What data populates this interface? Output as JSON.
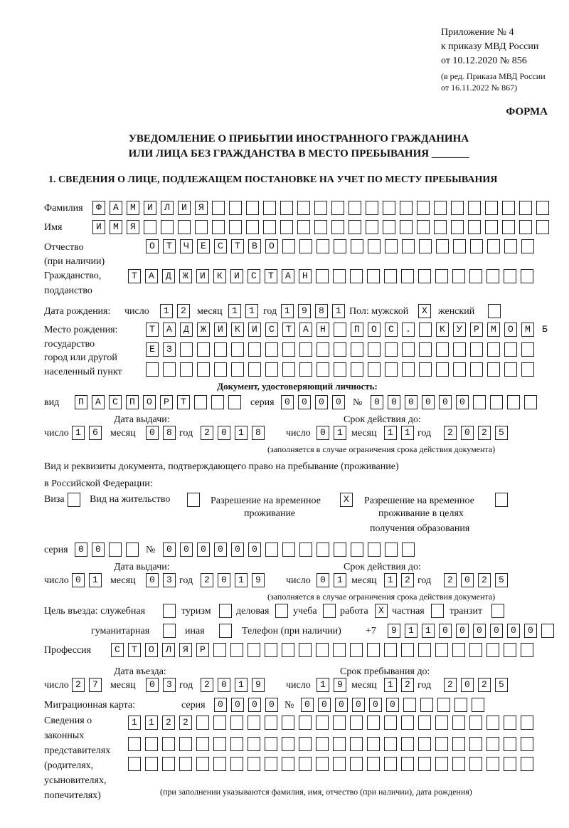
{
  "header": {
    "appendix": [
      "Приложение № 4",
      "к приказу МВД России",
      "от 10.12.2020 № 856"
    ],
    "revision": [
      "(в ред. Приказа МВД России",
      "от 16.11.2022 № 867)"
    ],
    "form_label": "ФОРМА",
    "title": [
      "УВЕДОМЛЕНИЕ О ПРИБЫТИИ ИНОСТРАННОГО ГРАЖДАНИНА",
      "ИЛИ ЛИЦА БЕЗ ГРАЖДАНСТВА В МЕСТО ПРЕБЫВАНИЯ _______"
    ],
    "section": "1. СВЕДЕНИЯ О ЛИЦЕ, ПОДЛЕЖАЩЕМ ПОСТАНОВКЕ НА УЧЕТ ПО МЕСТУ ПРЕБЫВАНИЯ"
  },
  "labels": {
    "surname": "Фамилия",
    "name": "Имя",
    "patronymic": [
      "Отчество",
      "(при наличии)"
    ],
    "citizenship": [
      "Гражданство,",
      "подданство"
    ],
    "birth_date": "Дата рождения:",
    "day": "число",
    "month": "месяц",
    "year": "год",
    "sex": "Пол: мужской",
    "female": "женский",
    "birth_place": [
      "Место рождения:",
      "государство",
      "город или другой",
      "населенный пункт"
    ],
    "id_doc": "Документ, удостоверяющий личность:",
    "kind": "вид",
    "series": "серия",
    "number": "№",
    "issue_date": "Дата выдачи:",
    "valid_until": "Срок действия до:",
    "valid_note": "(заполняется в случае ограничения срока действия документа)",
    "residence_doc": [
      "Вид и реквизиты документа, подтверждающего право на пребывание (проживание)",
      "в Российской Федерации:"
    ],
    "visa": "Виза",
    "residence_permit": "Вид на жительство",
    "temp_residence": [
      "Разрешение на временное",
      "проживание"
    ],
    "temp_residence_edu": [
      "Разрешение на временное",
      "проживание в целях",
      "получения образования"
    ],
    "purpose": "Цель въезда: служебная",
    "tourism": "туризм",
    "business": "деловая",
    "study": "учеба",
    "work": "работа",
    "private": "частная",
    "transit": "транзит",
    "humanitarian": "гуманитарная",
    "other": "иная",
    "phone": "Телефон (при наличии)",
    "phone_prefix": "+7",
    "profession": "Профессия",
    "entry_date": "Дата въезда:",
    "stay_until": "Срок пребывания до:",
    "migration_card": "Миграционная карта:",
    "representatives": [
      "Сведения о",
      "законных",
      "представителях",
      "(родителях,",
      "усыновителях,",
      "попечителях)"
    ],
    "rep_note": "(при заполнении указываются фамилия, имя, отчество (при наличии), дата рождения)"
  },
  "values": {
    "surname": "ФАМИЛИЯ",
    "name": "ИМЯ",
    "patronymic": "ОТЧЕСТВО",
    "citizenship": "ТАДЖИКИСТАН",
    "birth_day": "12",
    "birth_month": "11",
    "birth_year": "1981",
    "sex_male": "X",
    "sex_female": "",
    "birth_place_1": "ТАДЖИКИСТАН ПОС. КУРМОМБ",
    "birth_place_2": "ЕЗ",
    "birth_place_3": "",
    "doc_kind": "ПАСПОРТ",
    "doc_series": "0000",
    "doc_number": "000000",
    "doc_issue_day": "16",
    "doc_issue_month": "08",
    "doc_issue_year": "2018",
    "doc_valid_day": "01",
    "doc_valid_month": "11",
    "doc_valid_year": "2025",
    "visa": "",
    "residence_permit": "",
    "temp_residence": "X",
    "temp_residence_edu": "",
    "res_series": "00",
    "res_number": "000000",
    "res_issue_day": "01",
    "res_issue_month": "03",
    "res_issue_year": "2019",
    "res_valid_day": "01",
    "res_valid_month": "12",
    "res_valid_year": "2025",
    "p_service": "",
    "p_tourism": "",
    "p_business": "",
    "p_study": "",
    "p_work": "X",
    "p_private": "",
    "p_transit": "",
    "p_humanitarian": "",
    "p_other": "",
    "phone": "911000000",
    "profession": "СТОЛЯР",
    "entry_day": "27",
    "entry_month": "03",
    "entry_year": "2019",
    "stay_day": "19",
    "stay_month": "12",
    "stay_year": "2025",
    "mc_series": "0000",
    "mc_number": "000000",
    "rep_1": "1122",
    "rep_2": "",
    "rep_3": ""
  }
}
